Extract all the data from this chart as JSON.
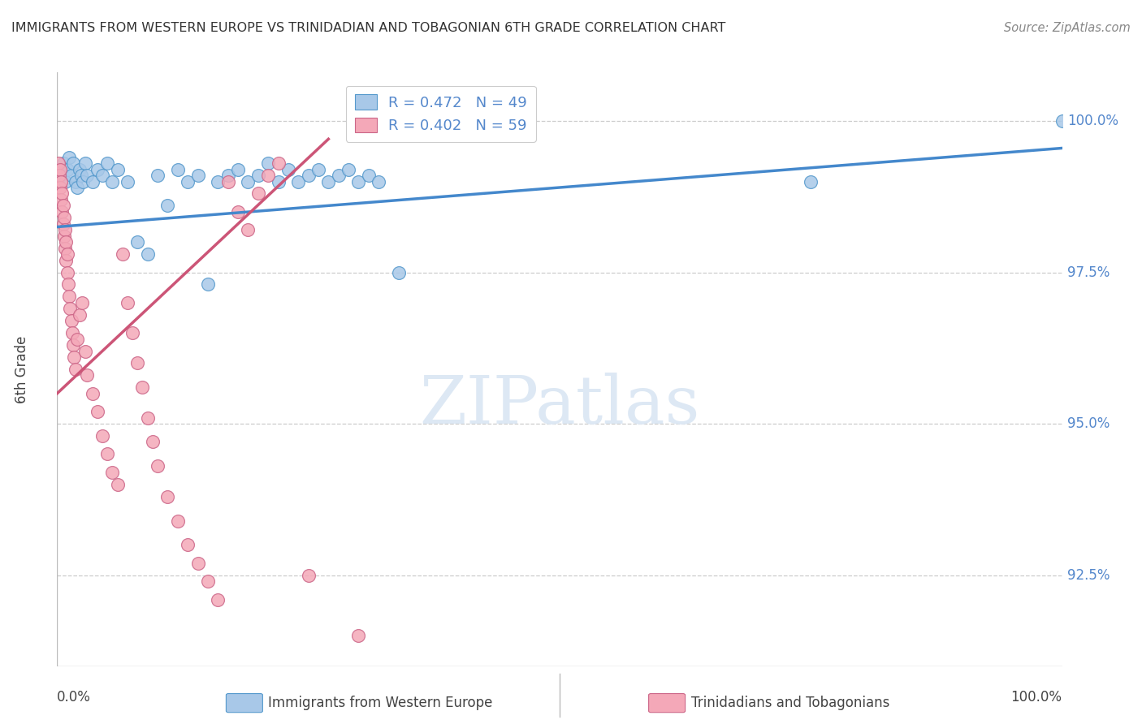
{
  "title": "IMMIGRANTS FROM WESTERN EUROPE VS TRINIDADIAN AND TOBAGONIAN 6TH GRADE CORRELATION CHART",
  "source": "Source: ZipAtlas.com",
  "ylabel": "6th Grade",
  "xlabel_bottom_left": "Immigrants from Western Europe",
  "xlabel_bottom_right": "Trinidadians and Tobagonians",
  "x_min": 0.0,
  "x_max": 100.0,
  "y_min": 91.0,
  "y_max": 100.8,
  "y_ticks": [
    100.0,
    97.5,
    95.0,
    92.5
  ],
  "blue_R": 0.472,
  "blue_N": 49,
  "pink_R": 0.402,
  "pink_N": 59,
  "blue_color": "#a8c8e8",
  "pink_color": "#f4a8b8",
  "blue_edge_color": "#5599cc",
  "pink_edge_color": "#cc6688",
  "blue_line_color": "#4488cc",
  "pink_line_color": "#cc5577",
  "grid_color": "#cccccc",
  "right_label_color": "#5588cc",
  "title_color": "#333333",
  "watermark_color": "#dde8f4",
  "blue_line_x0": 0.0,
  "blue_line_y0": 98.25,
  "blue_line_x1": 100.0,
  "blue_line_y1": 99.55,
  "pink_line_x0": 0.0,
  "pink_line_y0": 95.5,
  "pink_line_x1": 27.0,
  "pink_line_y1": 99.7,
  "blue_x": [
    0.4,
    0.6,
    0.8,
    1.0,
    1.2,
    1.4,
    1.6,
    1.8,
    2.0,
    2.2,
    2.4,
    2.6,
    2.8,
    3.0,
    3.5,
    4.0,
    4.5,
    5.0,
    5.5,
    6.0,
    7.0,
    8.0,
    9.0,
    10.0,
    11.0,
    12.0,
    13.0,
    14.0,
    15.0,
    16.0,
    17.0,
    18.0,
    19.0,
    20.0,
    21.0,
    22.0,
    23.0,
    24.0,
    25.0,
    26.0,
    27.0,
    28.0,
    29.0,
    30.0,
    31.0,
    32.0,
    34.0,
    75.0,
    100.0
  ],
  "blue_y": [
    99.1,
    99.3,
    99.0,
    99.2,
    99.4,
    99.1,
    99.3,
    99.0,
    98.9,
    99.2,
    99.1,
    99.0,
    99.3,
    99.1,
    99.0,
    99.2,
    99.1,
    99.3,
    99.0,
    99.2,
    99.0,
    98.0,
    97.8,
    99.1,
    98.6,
    99.2,
    99.0,
    99.1,
    97.3,
    99.0,
    99.1,
    99.2,
    99.0,
    99.1,
    99.3,
    99.0,
    99.2,
    99.0,
    99.1,
    99.2,
    99.0,
    99.1,
    99.2,
    99.0,
    99.1,
    99.0,
    97.5,
    99.0,
    100.0
  ],
  "pink_x": [
    0.1,
    0.2,
    0.3,
    0.3,
    0.4,
    0.4,
    0.5,
    0.5,
    0.6,
    0.6,
    0.7,
    0.7,
    0.8,
    0.8,
    0.9,
    0.9,
    1.0,
    1.0,
    1.1,
    1.2,
    1.3,
    1.4,
    1.5,
    1.6,
    1.7,
    1.8,
    2.0,
    2.2,
    2.5,
    2.8,
    3.0,
    3.5,
    4.0,
    4.5,
    5.0,
    5.5,
    6.0,
    6.5,
    7.0,
    7.5,
    8.0,
    8.5,
    9.0,
    9.5,
    10.0,
    11.0,
    12.0,
    13.0,
    14.0,
    15.0,
    16.0,
    17.0,
    18.0,
    19.0,
    20.0,
    21.0,
    22.0,
    25.0,
    30.0
  ],
  "pink_y": [
    99.3,
    99.1,
    98.9,
    99.2,
    98.7,
    99.0,
    98.5,
    98.8,
    98.3,
    98.6,
    98.1,
    98.4,
    97.9,
    98.2,
    97.7,
    98.0,
    97.5,
    97.8,
    97.3,
    97.1,
    96.9,
    96.7,
    96.5,
    96.3,
    96.1,
    95.9,
    96.4,
    96.8,
    97.0,
    96.2,
    95.8,
    95.5,
    95.2,
    94.8,
    94.5,
    94.2,
    94.0,
    97.8,
    97.0,
    96.5,
    96.0,
    95.6,
    95.1,
    94.7,
    94.3,
    93.8,
    93.4,
    93.0,
    92.7,
    92.4,
    92.1,
    99.0,
    98.5,
    98.2,
    98.8,
    99.1,
    99.3,
    92.5,
    91.5
  ]
}
